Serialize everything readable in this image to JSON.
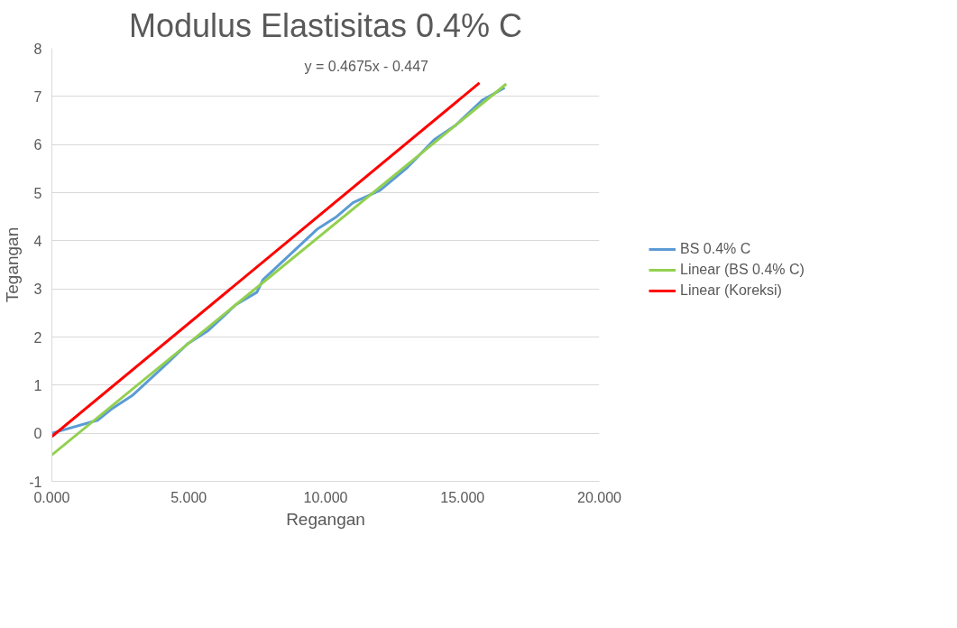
{
  "chart_data": {
    "type": "line",
    "title": "Modulus Elastisitas 0.4% C",
    "xlabel": "Regangan",
    "ylabel": "Tegangan",
    "series": [
      {
        "name": "BS 0.4% C",
        "color": "#5b9bd5",
        "x": [
          0,
          1.67,
          2.22,
          2.93,
          4.09,
          4.96,
          5.68,
          6.72,
          7.49,
          7.71,
          9.69,
          10.4,
          11.0,
          11.99,
          12.98,
          13.97,
          14.73,
          15.72,
          16.54
        ],
        "values": [
          0,
          0.27,
          0.52,
          0.78,
          1.39,
          1.86,
          2.12,
          2.67,
          2.93,
          3.19,
          4.24,
          4.5,
          4.79,
          5.05,
          5.52,
          6.1,
          6.39,
          6.92,
          7.18
        ]
      },
      {
        "name": "Linear (BS 0.4% C)",
        "color": "#92d050",
        "x": [
          0,
          16.6
        ],
        "values": [
          -0.45,
          7.26
        ]
      },
      {
        "name": "Linear (Koreksi)",
        "color": "#ff0000",
        "x": [
          0,
          15.62
        ],
        "values": [
          -0.07,
          7.28
        ]
      }
    ],
    "annotations": [
      "y = 0.4675x - 0.447"
    ],
    "xlim": [
      0,
      20
    ],
    "ylim": [
      -1,
      8
    ],
    "xticks": [
      {
        "value": 0,
        "label": "0.000"
      },
      {
        "value": 5,
        "label": "5.000"
      },
      {
        "value": 10,
        "label": "10.000"
      },
      {
        "value": 15,
        "label": "15.000"
      },
      {
        "value": 20,
        "label": "20.000"
      }
    ],
    "yticks": [
      -1,
      0,
      1,
      2,
      3,
      4,
      5,
      6,
      7,
      8
    ],
    "grid": "y",
    "legend": "right",
    "marker": "none",
    "line_style": "solid"
  }
}
